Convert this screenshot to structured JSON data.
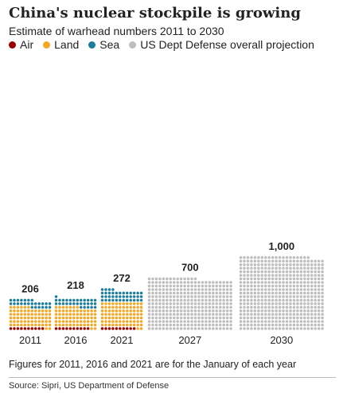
{
  "title": "China's nuclear stockpile is growing",
  "subtitle": "Estimate of warhead numbers 2011 to 2030",
  "legend": [
    {
      "label": "Air",
      "color": "#990000"
    },
    {
      "label": "Land",
      "color": "#f5a623"
    },
    {
      "label": "Sea",
      "color": "#1b7c9c"
    },
    {
      "label": "US Dept Defense overall projection",
      "color": "#bdbdbd"
    }
  ],
  "footnote": "Figures for 2011, 2016 and 2021 are for the January of each year",
  "source": "Source: Sipri, US Department of Defense",
  "chart_data": {
    "type": "bar",
    "stacked": true,
    "categories": [
      "2011",
      "2016",
      "2021",
      "2027",
      "2030"
    ],
    "totals": [
      206,
      218,
      272,
      700,
      1000
    ],
    "total_labels": [
      "206",
      "218",
      "272",
      "700",
      "1,000"
    ],
    "series": [
      {
        "name": "Air",
        "color": "#990000",
        "values": [
          20,
          20,
          20,
          0,
          0
        ]
      },
      {
        "name": "Land",
        "color": "#f5a623",
        "values": [
          136,
          138,
          172,
          0,
          0
        ]
      },
      {
        "name": "Sea",
        "color": "#1b7c9c",
        "values": [
          50,
          60,
          80,
          0,
          0
        ]
      },
      {
        "name": "US Dept Defense overall projection",
        "color": "#bdbdbd",
        "values": [
          0,
          0,
          0,
          700,
          1000
        ]
      }
    ],
    "xlabel": "",
    "ylabel": "",
    "grid": false,
    "legend_position": "top-left"
  }
}
